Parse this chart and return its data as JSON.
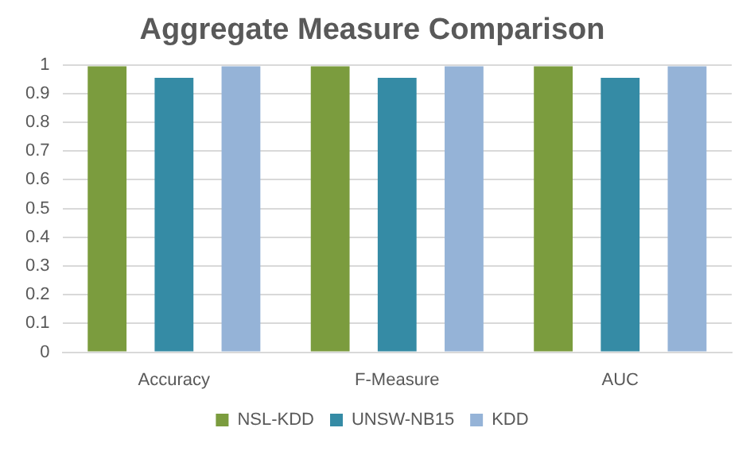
{
  "chart_data": {
    "type": "bar",
    "title": "Aggregate Measure Comparison",
    "categories": [
      "Accuracy",
      "F-Measure",
      "AUC"
    ],
    "series": [
      {
        "name": "NSL-KDD",
        "color": "#7b9c3e",
        "values": [
          0.995,
          0.995,
          0.995
        ]
      },
      {
        "name": "UNSW-NB15",
        "color": "#358ba5",
        "values": [
          0.955,
          0.955,
          0.955
        ]
      },
      {
        "name": "KDD",
        "color": "#95b3d7",
        "values": [
          0.995,
          0.995,
          0.995
        ]
      }
    ],
    "ylim": [
      0,
      1
    ],
    "yticks": [
      0,
      0.1,
      0.2,
      0.3,
      0.4,
      0.5,
      0.6,
      0.7,
      0.8,
      0.9,
      1
    ],
    "grid": "y",
    "legend": "bottom"
  }
}
